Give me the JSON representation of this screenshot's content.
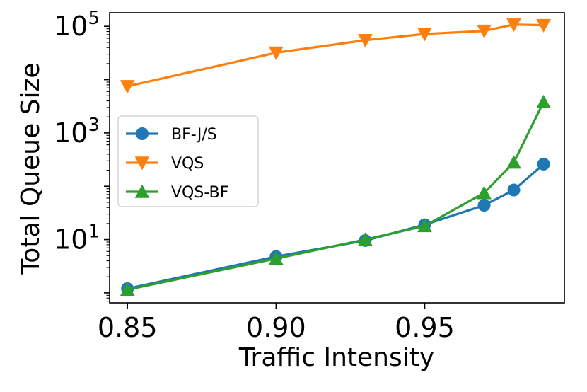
{
  "chart_data": {
    "type": "line",
    "title": "",
    "xlabel": "Traffic Intensity",
    "ylabel": "Total Queue Size",
    "xlim": [
      0.844,
      0.997
    ],
    "ylim": [
      0.65,
      180000
    ],
    "yscale": "log",
    "x": [
      0.85,
      0.9,
      0.93,
      0.95,
      0.97,
      0.98,
      0.99
    ],
    "xticks": [
      {
        "value": 0.85,
        "label": "0.85"
      },
      {
        "value": 0.9,
        "label": "0.90"
      },
      {
        "value": 0.95,
        "label": "0.95"
      }
    ],
    "yticks": [
      {
        "value": 10,
        "base": "10",
        "exp": "1"
      },
      {
        "value": 1000,
        "base": "10",
        "exp": "3"
      },
      {
        "value": 100000,
        "base": "10",
        "exp": "5"
      }
    ],
    "legend_position": "center-left",
    "series": [
      {
        "name": "BF-J/S",
        "color": "#1f77b4",
        "marker": "circle",
        "values": [
          1.2,
          4.8,
          9.6,
          19,
          44,
          85,
          260
        ]
      },
      {
        "name": "VQS",
        "color": "#ff7f0e",
        "marker": "triangle-down",
        "values": [
          7500,
          32000,
          55000,
          72000,
          82000,
          108000,
          105000
        ]
      },
      {
        "name": "VQS-BF",
        "color": "#2ca02c",
        "marker": "triangle-up",
        "values": [
          1.15,
          4.4,
          10,
          18,
          75,
          280,
          3800
        ]
      }
    ]
  }
}
